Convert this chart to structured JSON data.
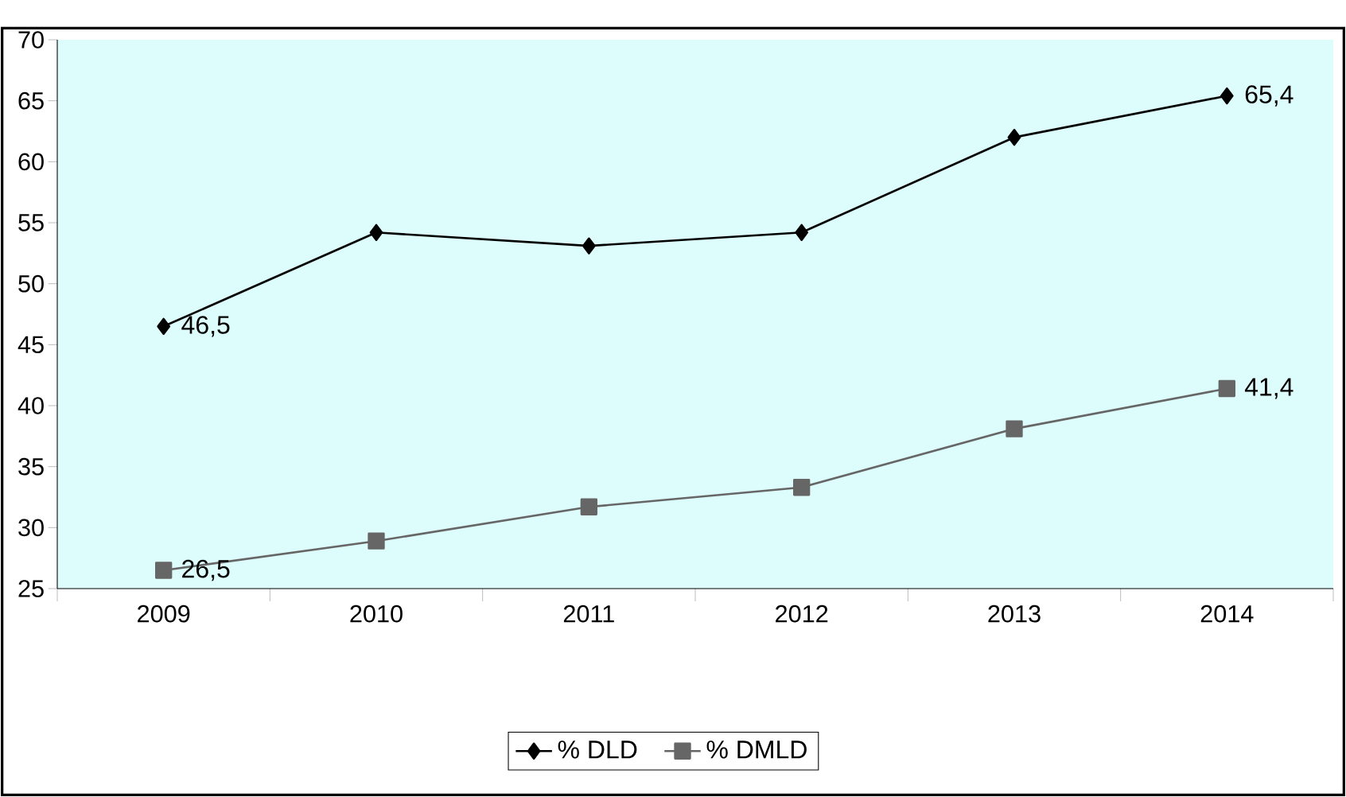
{
  "chart_data": {
    "type": "line",
    "categories": [
      "2009",
      "2010",
      "2011",
      "2012",
      "2013",
      "2014"
    ],
    "series": [
      {
        "name": "% DLD",
        "color": "#000000",
        "marker": "diamond",
        "values": [
          46.5,
          54.2,
          53.1,
          54.2,
          62.0,
          65.4
        ],
        "value_labels": [
          "46,5",
          null,
          null,
          null,
          null,
          "65,4"
        ]
      },
      {
        "name": "% DMLD",
        "color": "#666666",
        "marker": "square",
        "values": [
          26.5,
          28.9,
          31.7,
          33.3,
          38.1,
          41.4
        ],
        "value_labels": [
          "26,5",
          null,
          null,
          null,
          null,
          "41,4"
        ]
      }
    ],
    "ylim": [
      25,
      70
    ],
    "yticks": [
      25,
      30,
      35,
      40,
      45,
      50,
      55,
      60,
      65,
      70
    ],
    "grid": false,
    "legend": "bottom",
    "line_style": "solid"
  }
}
